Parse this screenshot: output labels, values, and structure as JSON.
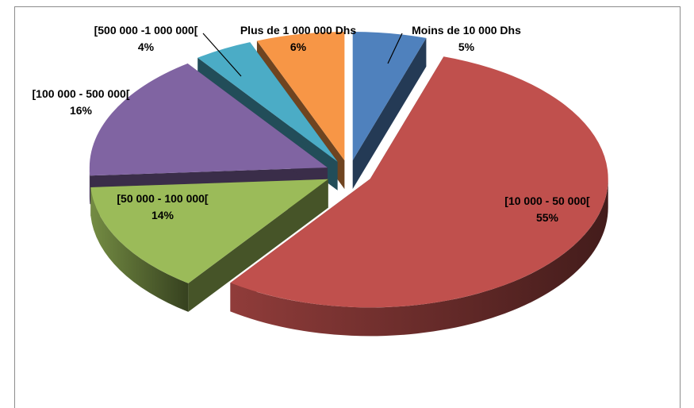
{
  "chart_data": {
    "type": "pie3d",
    "categories": [
      "Moins de 10 000 Dhs",
      "[10 000 - 50 000[",
      "[50 000 - 100 000[",
      "[100 000 - 500 000[",
      "[500 000 -1 000 000[",
      "Plus de 1 000 000 Dhs"
    ],
    "values": [
      5,
      55,
      14,
      16,
      4,
      6
    ],
    "value_labels": [
      "5%",
      "55%",
      "14%",
      "16%",
      "4%",
      "6%"
    ],
    "colors": [
      "#4f81bd",
      "#c0504d",
      "#9bbb59",
      "#8064a2",
      "#4bacc6",
      "#f79646"
    ]
  }
}
